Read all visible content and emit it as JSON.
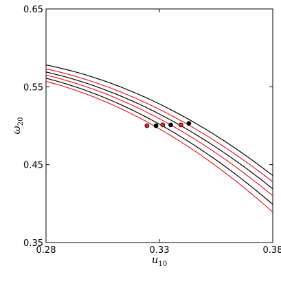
{
  "chart_data": {
    "type": "line",
    "title": "",
    "xlabel": {
      "base": "u",
      "sub": "10"
    },
    "ylabel": {
      "base": "ω",
      "sub": "20"
    },
    "xlim": [
      0.28,
      0.38
    ],
    "ylim": [
      0.35,
      0.65
    ],
    "xticks": [
      0.28,
      0.33,
      0.38
    ],
    "yticks": [
      0.35,
      0.45,
      0.55,
      0.65
    ],
    "xtick_labels": [
      "0.28",
      "0.33",
      "0.38"
    ],
    "ytick_labels": [
      "0.35",
      "0.45",
      "0.55",
      "0.65"
    ],
    "grid": false,
    "series": [
      {
        "color": "#000000",
        "x": [
          0.28,
          0.33,
          0.38
        ],
        "y": [
          0.578,
          0.528,
          0.436
        ]
      },
      {
        "color": "#e8202a",
        "x": [
          0.28,
          0.33,
          0.38
        ],
        "y": [
          0.573,
          0.521,
          0.428
        ]
      },
      {
        "color": "#000000",
        "x": [
          0.28,
          0.33,
          0.38
        ],
        "y": [
          0.569,
          0.515,
          0.419
        ]
      },
      {
        "color": "#e8202a",
        "x": [
          0.28,
          0.33,
          0.38
        ],
        "y": [
          0.565,
          0.509,
          0.41
        ]
      },
      {
        "color": "#000000",
        "x": [
          0.28,
          0.33,
          0.38
        ],
        "y": [
          0.561,
          0.502,
          0.399
        ]
      },
      {
        "color": "#e8202a",
        "x": [
          0.28,
          0.33,
          0.38
        ],
        "y": [
          0.557,
          0.496,
          0.389
        ]
      }
    ],
    "points": [
      {
        "x": 0.3245,
        "y": 0.5,
        "color": "#e8202a"
      },
      {
        "x": 0.3285,
        "y": 0.5,
        "color": "#000000"
      },
      {
        "x": 0.3315,
        "y": 0.501,
        "color": "#e8202a"
      },
      {
        "x": 0.335,
        "y": 0.501,
        "color": "#000000"
      },
      {
        "x": 0.3395,
        "y": 0.501,
        "color": "#e8202a"
      },
      {
        "x": 0.343,
        "y": 0.503,
        "color": "#000000"
      }
    ]
  }
}
